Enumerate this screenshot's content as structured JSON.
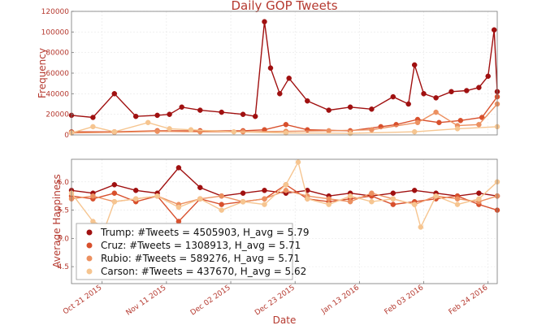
{
  "chart_data": [
    {
      "type": "line",
      "title": "Daily GOP Tweets",
      "xlabel": "",
      "ylabel": "Frequency",
      "ylim": [
        0,
        120000
      ],
      "yticks": [
        0,
        20000,
        40000,
        60000,
        80000,
        100000,
        120000
      ],
      "xlim": [
        "2015-10-11",
        "2016-02-27"
      ],
      "grid": true,
      "series": [
        {
          "name": "Trump",
          "color": "#a01010",
          "x": [
            "2015-10-11",
            "2015-10-18",
            "2015-10-25",
            "2015-11-01",
            "2015-11-08",
            "2015-11-12",
            "2015-11-16",
            "2015-11-22",
            "2015-11-29",
            "2015-12-06",
            "2015-12-10",
            "2015-12-13",
            "2015-12-15",
            "2015-12-18",
            "2015-12-21",
            "2015-12-27",
            "2016-01-03",
            "2016-01-10",
            "2016-01-17",
            "2016-01-24",
            "2016-01-29",
            "2016-01-31",
            "2016-02-03",
            "2016-02-07",
            "2016-02-12",
            "2016-02-17",
            "2016-02-21",
            "2016-02-24",
            "2016-02-26",
            "2016-02-27"
          ],
          "values": [
            19000,
            17000,
            40000,
            18000,
            19000,
            20000,
            27000,
            24000,
            22000,
            20000,
            18000,
            110000,
            65000,
            40000,
            55000,
            33000,
            24000,
            27000,
            25000,
            37000,
            30000,
            68000,
            40000,
            36000,
            42000,
            43000,
            46000,
            57000,
            102000,
            42000
          ]
        },
        {
          "name": "Cruz",
          "color": "#d8502d",
          "x": [
            "2015-10-11",
            "2015-10-25",
            "2015-11-08",
            "2015-11-22",
            "2015-12-06",
            "2015-12-13",
            "2015-12-20",
            "2015-12-27",
            "2016-01-10",
            "2016-01-20",
            "2016-01-25",
            "2016-02-01",
            "2016-02-08",
            "2016-02-15",
            "2016-02-22",
            "2016-02-27"
          ],
          "values": [
            3000,
            3000,
            4000,
            4000,
            4000,
            5000,
            10000,
            5000,
            4000,
            8000,
            10000,
            15000,
            12000,
            14000,
            17000,
            37000
          ]
        },
        {
          "name": "Rubio",
          "color": "#ec9060",
          "x": [
            "2015-10-11",
            "2015-10-25",
            "2015-11-08",
            "2015-11-22",
            "2015-12-06",
            "2015-12-20",
            "2016-01-03",
            "2016-01-17",
            "2016-02-01",
            "2016-02-07",
            "2016-02-14",
            "2016-02-21",
            "2016-02-27"
          ],
          "values": [
            2000,
            2500,
            3500,
            3000,
            3000,
            3500,
            4000,
            5000,
            12000,
            22000,
            9000,
            10000,
            30000
          ]
        },
        {
          "name": "Carson",
          "color": "#f6c590",
          "x": [
            "2015-10-11",
            "2015-10-18",
            "2015-10-25",
            "2015-11-05",
            "2015-11-12",
            "2015-11-19",
            "2015-12-03",
            "2015-12-20",
            "2016-01-10",
            "2016-01-31",
            "2016-02-14",
            "2016-02-27"
          ],
          "values": [
            2000,
            8000,
            3000,
            12000,
            6000,
            5000,
            3000,
            2000,
            1500,
            3000,
            6000,
            8000
          ]
        }
      ]
    },
    {
      "type": "line",
      "title": "",
      "xlabel": "Date",
      "ylabel": "Average Happiness",
      "ylim": [
        4.2,
        6.4
      ],
      "yticks": [
        4.5,
        5.0,
        5.5,
        6.0
      ],
      "ytick_labels": [
        "4.5",
        "5.0",
        "5.5",
        "6.0"
      ],
      "xlim": [
        "2015-10-11",
        "2016-02-27"
      ],
      "xtick_labels": [
        "Oct 21 2015",
        "Nov 11 2015",
        "Dec 02 2015",
        "Dec 23 2015",
        "Jan 13 2016",
        "Feb 03 2016",
        "Feb 24 2016"
      ],
      "xtick_dates": [
        "2015-10-21",
        "2015-11-11",
        "2015-12-02",
        "2015-12-23",
        "2016-01-13",
        "2016-02-03",
        "2016-02-24"
      ],
      "grid": true,
      "legend_position": "bottom-left",
      "series": [
        {
          "name": "Trump",
          "legend": "Trump: #Tweets = 4505903, H_avg = 5.79",
          "color": "#a01010",
          "x": [
            "2015-10-11",
            "2015-10-18",
            "2015-10-25",
            "2015-11-01",
            "2015-11-08",
            "2015-11-15",
            "2015-11-22",
            "2015-11-29",
            "2015-12-06",
            "2015-12-13",
            "2015-12-20",
            "2015-12-27",
            "2016-01-03",
            "2016-01-10",
            "2016-01-17",
            "2016-01-24",
            "2016-01-31",
            "2016-02-07",
            "2016-02-14",
            "2016-02-21",
            "2016-02-27"
          ],
          "values": [
            5.85,
            5.8,
            5.95,
            5.85,
            5.8,
            6.25,
            5.9,
            5.75,
            5.8,
            5.85,
            5.8,
            5.85,
            5.75,
            5.8,
            5.75,
            5.8,
            5.85,
            5.8,
            5.75,
            5.8,
            5.75
          ]
        },
        {
          "name": "Cruz",
          "legend": "Cruz: #Tweets = 1308913, H_avg = 5.71",
          "color": "#d8502d",
          "x": [
            "2015-10-11",
            "2015-10-18",
            "2015-10-25",
            "2015-11-01",
            "2015-11-08",
            "2015-11-15",
            "2015-11-22",
            "2015-11-29",
            "2015-12-06",
            "2015-12-13",
            "2015-12-20",
            "2015-12-27",
            "2016-01-03",
            "2016-01-10",
            "2016-01-17",
            "2016-01-24",
            "2016-01-31",
            "2016-02-07",
            "2016-02-14",
            "2016-02-21",
            "2016-02-27"
          ],
          "values": [
            5.75,
            5.7,
            5.8,
            5.65,
            5.75,
            5.3,
            5.7,
            5.6,
            5.65,
            5.7,
            5.95,
            5.7,
            5.65,
            5.7,
            5.75,
            5.6,
            5.65,
            5.7,
            5.75,
            5.6,
            5.5
          ]
        },
        {
          "name": "Rubio",
          "legend": "Rubio: #Tweets = 589276, H_avg = 5.71",
          "color": "#ec9060",
          "x": [
            "2015-10-11",
            "2015-10-18",
            "2015-10-25",
            "2015-11-01",
            "2015-11-08",
            "2015-11-15",
            "2015-11-22",
            "2015-11-29",
            "2015-12-06",
            "2015-12-13",
            "2015-12-20",
            "2015-12-27",
            "2016-01-03",
            "2016-01-10",
            "2016-01-17",
            "2016-01-24",
            "2016-01-31",
            "2016-02-07",
            "2016-02-14",
            "2016-02-21",
            "2016-02-27"
          ],
          "values": [
            5.7,
            5.75,
            5.65,
            5.7,
            5.75,
            5.6,
            5.7,
            5.75,
            5.65,
            5.7,
            5.85,
            5.75,
            5.7,
            5.65,
            5.8,
            5.7,
            5.6,
            5.75,
            5.7,
            5.65,
            5.75
          ]
        },
        {
          "name": "Carson",
          "legend": "Carson: #Tweets = 437670, H_avg = 5.62",
          "color": "#f6c590",
          "x": [
            "2015-10-11",
            "2015-10-18",
            "2015-10-22",
            "2015-10-25",
            "2015-11-01",
            "2015-11-08",
            "2015-11-15",
            "2015-11-22",
            "2015-11-29",
            "2015-12-06",
            "2015-12-13",
            "2015-12-20",
            "2015-12-24",
            "2015-12-27",
            "2016-01-03",
            "2016-01-10",
            "2016-01-17",
            "2016-01-24",
            "2016-01-31",
            "2016-02-02",
            "2016-02-07",
            "2016-02-14",
            "2016-02-21",
            "2016-02-27"
          ],
          "values": [
            5.8,
            5.3,
            5.2,
            5.65,
            5.7,
            5.75,
            5.55,
            5.7,
            5.5,
            5.65,
            5.6,
            5.95,
            6.35,
            5.7,
            5.6,
            5.75,
            5.65,
            5.7,
            5.6,
            5.2,
            5.75,
            5.6,
            5.7,
            6.0
          ]
        }
      ]
    }
  ]
}
